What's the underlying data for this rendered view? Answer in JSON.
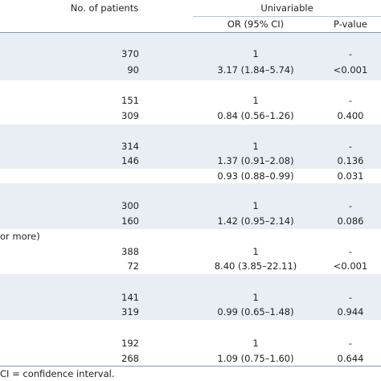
{
  "header": {
    "patients": "No. of patients",
    "group": "Univariable",
    "or": "OR (95% CI)",
    "p": "P-value"
  },
  "rows": [
    {
      "patients": 370,
      "or": "1",
      "p": "-"
    },
    {
      "patients": 90,
      "or": "3.17 (1.84–5.74)",
      "p": "<0.001"
    },
    {
      "patients": 151,
      "or": "1",
      "p": "-"
    },
    {
      "patients": 309,
      "or": "0.84 (0.56–1.26)",
      "p": "0.400"
    },
    {
      "patients": 314,
      "or": "1",
      "p": "-"
    },
    {
      "patients": 146,
      "or": "1.37 (0.91–2.08)",
      "p": "0.136"
    },
    {
      "or": "0.93 (0.88–0.99)",
      "p": "0.031"
    },
    {
      "patients": 300,
      "or": "1",
      "p": "-"
    },
    {
      "patients": 160,
      "or": "1.42 (0.95–2.14)",
      "p": "0.086"
    },
    {
      "label": "or more)"
    },
    {
      "patients": 388,
      "or": "1",
      "p": "-"
    },
    {
      "patients": 72,
      "or": "8.40 (3.85–22.11)",
      "p": "<0.001"
    },
    {
      "patients": 141,
      "or": "1",
      "p": "-"
    },
    {
      "patients": 319,
      "or": "0.99 (0.65–1.48)",
      "p": "0.944"
    },
    {
      "patients": 192,
      "or": "1",
      "p": "-"
    },
    {
      "patients": 268,
      "or": "1.09 (0.75–1.60)",
      "p": "0.644"
    }
  ],
  "footer": "CI = confidence interval."
}
